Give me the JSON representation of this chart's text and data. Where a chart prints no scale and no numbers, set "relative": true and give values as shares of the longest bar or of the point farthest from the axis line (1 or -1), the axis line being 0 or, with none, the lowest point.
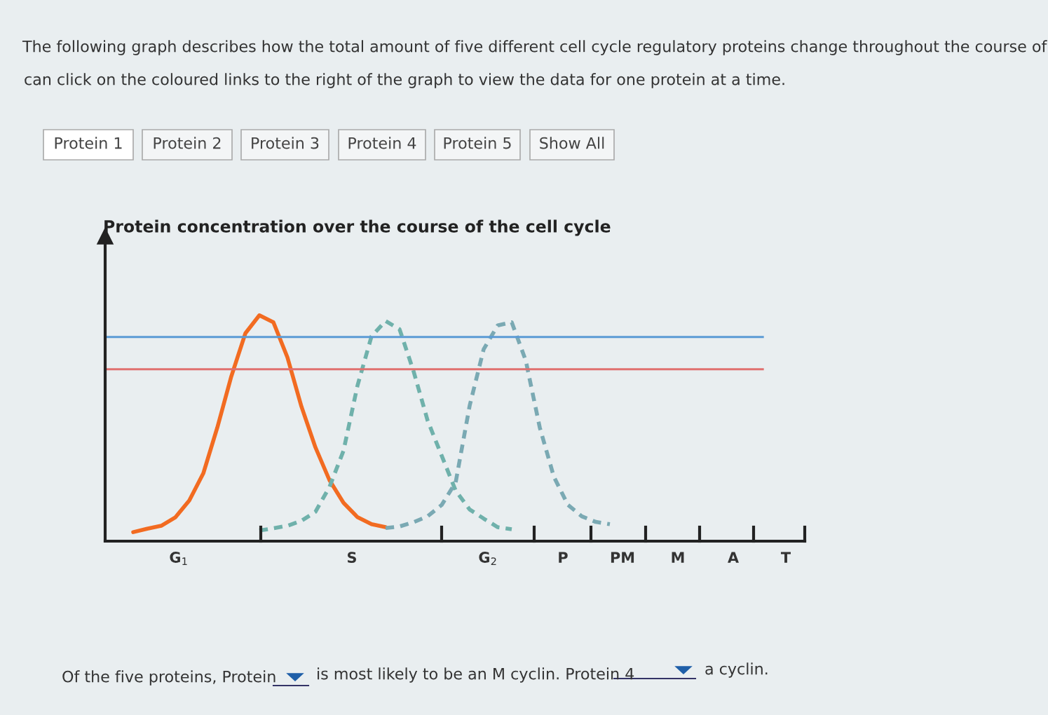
{
  "chart_data": {
    "type": "line",
    "title": "Protein concentration over the course of the cell cycle",
    "relative": true,
    "categories": [
      null,
      null,
      null,
      null,
      null,
      null,
      null,
      null,
      null,
      null,
      null,
      null,
      null,
      null,
      null,
      null,
      null,
      null,
      null,
      null,
      null,
      null,
      null,
      null,
      null,
      null,
      null,
      null,
      null,
      null,
      null,
      null,
      null,
      null,
      null,
      null,
      null,
      null,
      null,
      null,
      null,
      null,
      null,
      null,
      null,
      null,
      null,
      null,
      null,
      null
    ],
    "series": [
      {
        "color": "#f26b21",
        "line_style": "solid",
        "values": [
          null,
          null,
          0.04,
          0.055,
          0.068,
          0.105,
          0.18,
          0.3,
          0.503,
          0.73,
          0.92,
          1.0,
          0.969,
          0.814,
          0.596,
          0.415,
          0.27,
          0.17,
          0.106,
          0.075,
          0.062,
          null,
          null,
          null,
          null,
          null,
          null,
          null,
          null,
          null,
          null,
          null,
          null,
          null,
          null,
          null,
          null,
          null,
          null,
          null,
          null,
          null,
          null,
          null,
          null,
          null,
          null,
          null,
          null,
          null
        ]
      },
      {
        "color": "#6fb1ab",
        "line_style": "dashed",
        "values": [
          null,
          null,
          null,
          null,
          null,
          null,
          null,
          null,
          null,
          null,
          null,
          0.047,
          0.057,
          0.068,
          0.09,
          0.13,
          0.24,
          0.4,
          0.689,
          0.907,
          0.975,
          0.938,
          0.752,
          0.534,
          0.379,
          0.224,
          0.14,
          0.1,
          0.062,
          0.053,
          null,
          null,
          null,
          null,
          null,
          null,
          null,
          null,
          null,
          null,
          null,
          null,
          null,
          null,
          null,
          null,
          null,
          null,
          null,
          null
        ]
      },
      {
        "color": "#7aa9b3",
        "line_style": "dashed",
        "values": [
          null,
          null,
          null,
          null,
          null,
          null,
          null,
          null,
          null,
          null,
          null,
          null,
          null,
          null,
          null,
          null,
          null,
          null,
          null,
          null,
          0.058,
          0.065,
          0.084,
          0.11,
          0.16,
          0.26,
          0.6,
          0.85,
          0.955,
          0.969,
          0.8,
          0.503,
          0.286,
          0.161,
          0.11,
          0.085,
          0.075,
          null,
          null,
          null,
          null,
          null,
          null,
          null,
          null,
          null,
          null,
          null,
          null,
          null
        ]
      }
    ],
    "ref_lines": [
      {
        "axis": "y",
        "value": 0.904,
        "color": "#5b9bd5",
        "line_style": "solid"
      },
      {
        "axis": "y",
        "value": 0.761,
        "color": "#e0706f",
        "line_style": "solid"
      }
    ],
    "annotations": [
      "The following graph describes how the total amount of five different cell cycle regulatory proteins change throughout the course of",
      "can click on the coloured links to the right of the graph to view the data for one protein at a time.",
      "Protein 1",
      "Protein 2",
      "Protein 3",
      "Protein 4",
      "Protein 5",
      "Show All",
      "Of the five proteins, Protein",
      "is most likely to be an M cyclin. Protein 4",
      "a cyclin.",
      "G$_{1}$",
      "S",
      "G$_{2}$",
      "P",
      "PM",
      "M",
      "A",
      "T"
    ]
  }
}
